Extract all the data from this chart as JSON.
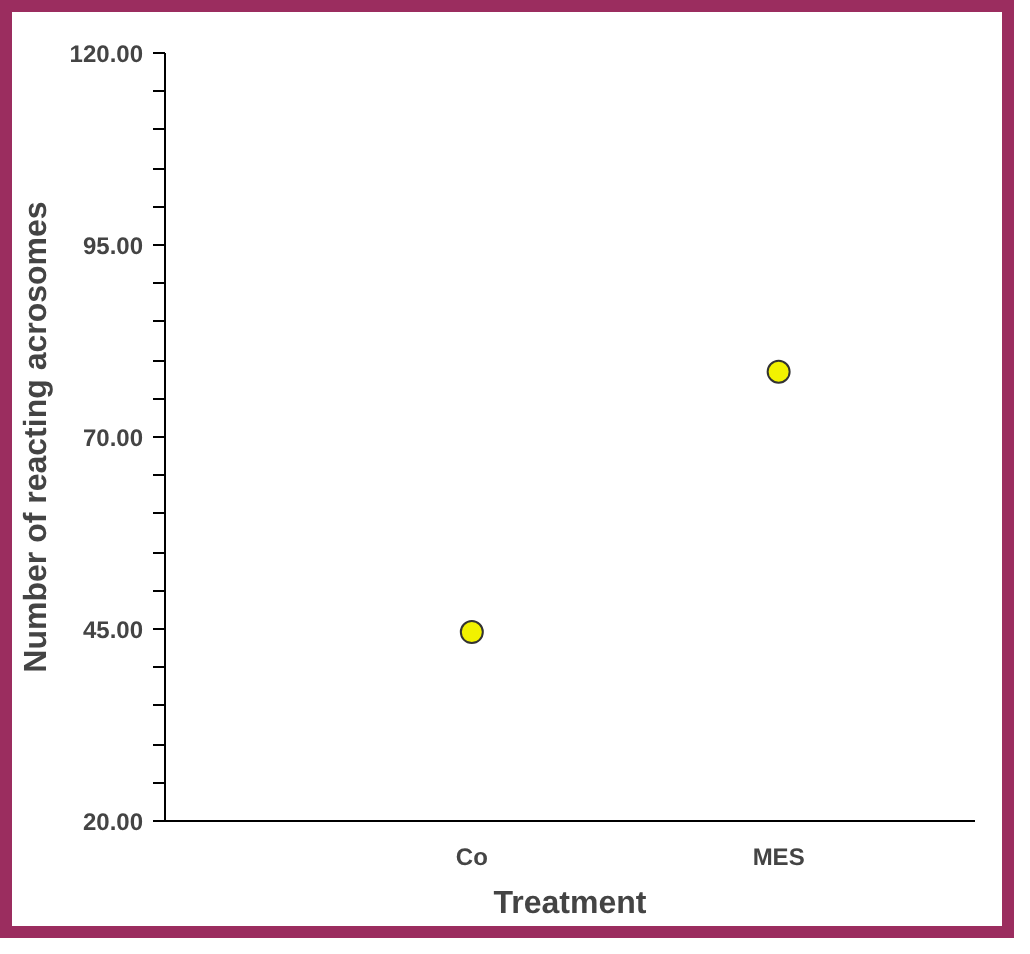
{
  "chart_data": {
    "type": "scatter",
    "xlabel": "Treatment",
    "ylabel": "Number of reacting acrosomes",
    "categories": [
      "Co",
      "MES"
    ],
    "series": [
      {
        "color": "#f2f200",
        "values": [
          44.6,
          78.5
        ]
      }
    ],
    "ylim": [
      20,
      120
    ],
    "yticks": [
      {
        "value": 20,
        "label": "20.00"
      },
      {
        "value": 25,
        "label": null
      },
      {
        "value": 30,
        "label": null
      },
      {
        "value": 35,
        "label": null
      },
      {
        "value": 40,
        "label": null
      },
      {
        "value": 45,
        "label": "45.00"
      },
      {
        "value": 50,
        "label": null
      },
      {
        "value": 55,
        "label": null
      },
      {
        "value": 60,
        "label": null
      },
      {
        "value": 65,
        "label": null
      },
      {
        "value": 70,
        "label": "70.00"
      },
      {
        "value": 75,
        "label": null
      },
      {
        "value": 80,
        "label": null
      },
      {
        "value": 85,
        "label": null
      },
      {
        "value": 90,
        "label": null
      },
      {
        "value": 95,
        "label": "95.00"
      },
      {
        "value": 100,
        "label": null
      },
      {
        "value": 105,
        "label": null
      },
      {
        "value": 110,
        "label": null
      },
      {
        "value": 115,
        "label": null
      },
      {
        "value": 120,
        "label": "120.00"
      }
    ],
    "grid": false,
    "marker": "circle"
  }
}
